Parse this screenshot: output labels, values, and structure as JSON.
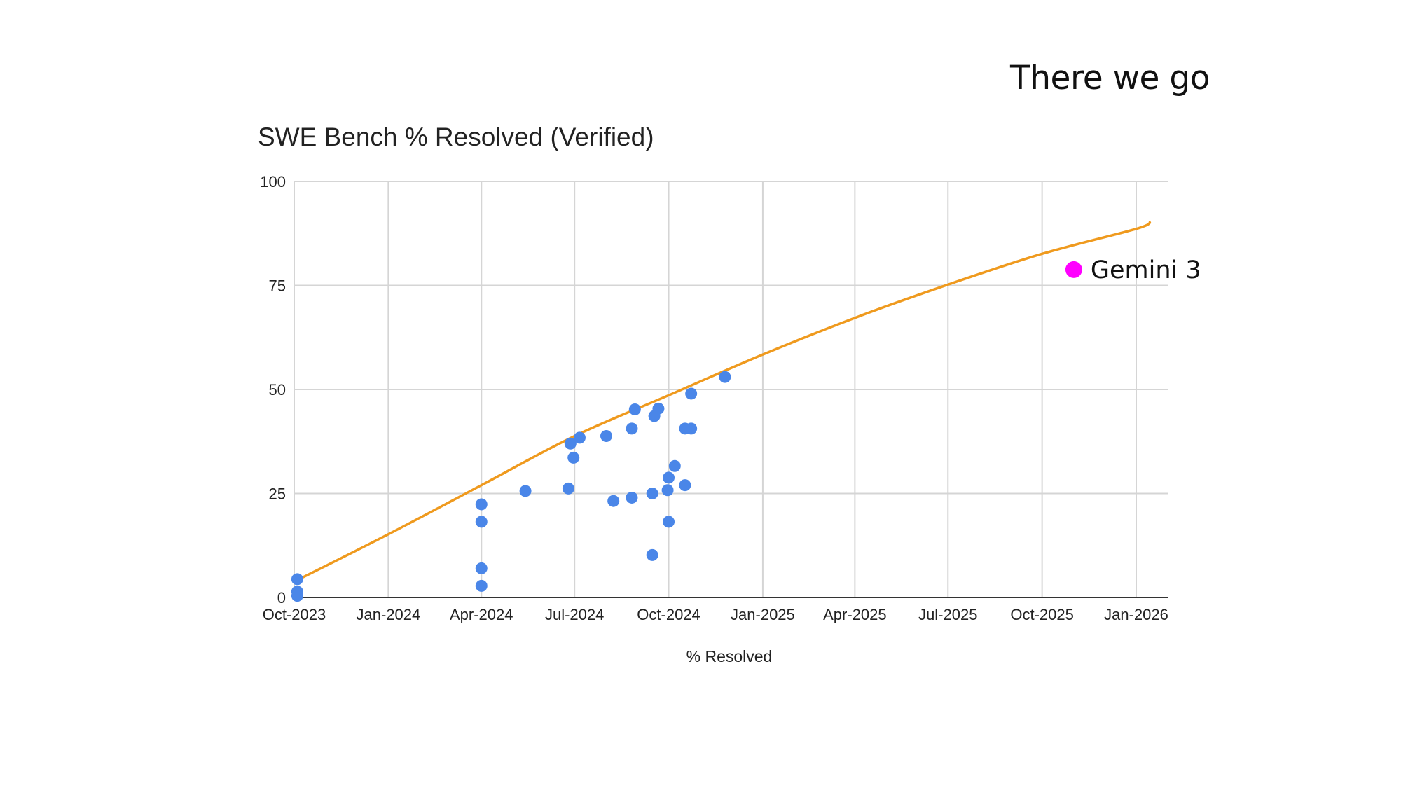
{
  "slide": {
    "caption": "There we go"
  },
  "chart_data": {
    "type": "scatter",
    "title": "SWE Bench % Resolved (Verified)",
    "xlabel": "% Resolved",
    "ylabel": "",
    "x_axis": {
      "type": "date",
      "range": [
        "2023-10-01",
        "2026-01-01"
      ],
      "ticks": [
        {
          "label": "Oct-2023",
          "date": "2023-10-01"
        },
        {
          "label": "Jan-2024",
          "date": "2024-01-01"
        },
        {
          "label": "Apr-2024",
          "date": "2024-04-01"
        },
        {
          "label": "Jul-2024",
          "date": "2024-07-01"
        },
        {
          "label": "Oct-2024",
          "date": "2024-10-01"
        },
        {
          "label": "Jan-2025",
          "date": "2025-01-01"
        },
        {
          "label": "Apr-2025",
          "date": "2025-04-01"
        },
        {
          "label": "Jul-2025",
          "date": "2025-07-01"
        },
        {
          "label": "Oct-2025",
          "date": "2025-10-01"
        },
        {
          "label": "Jan-2026",
          "date": "2026-01-01"
        }
      ]
    },
    "y_axis": {
      "range": [
        0,
        100
      ],
      "ticks": [
        0,
        25,
        50,
        75,
        100
      ]
    },
    "grid": true,
    "legend": "none",
    "colors": {
      "points": "#4a86e8",
      "trend": "#ef9a1e",
      "highlight": "#ff00ff",
      "grid": "#d5d5d5",
      "axis": "#333333"
    },
    "series": [
      {
        "points": [
          {
            "x": "2023-10-04",
            "y": 4.4
          },
          {
            "x": "2023-10-04",
            "y": 1.4
          },
          {
            "x": "2023-10-04",
            "y": 0.4
          },
          {
            "x": "2024-04-01",
            "y": 22.4
          },
          {
            "x": "2024-04-01",
            "y": 18.2
          },
          {
            "x": "2024-04-01",
            "y": 7.0
          },
          {
            "x": "2024-04-01",
            "y": 2.8
          },
          {
            "x": "2024-05-14",
            "y": 25.6
          },
          {
            "x": "2024-06-25",
            "y": 26.2
          },
          {
            "x": "2024-06-27",
            "y": 37.0
          },
          {
            "x": "2024-06-30",
            "y": 33.6
          },
          {
            "x": "2024-07-06",
            "y": 38.4
          },
          {
            "x": "2024-08-01",
            "y": 38.8
          },
          {
            "x": "2024-08-08",
            "y": 23.2
          },
          {
            "x": "2024-08-26",
            "y": 24.0
          },
          {
            "x": "2024-08-26",
            "y": 40.6
          },
          {
            "x": "2024-08-29",
            "y": 45.2
          },
          {
            "x": "2024-09-15",
            "y": 10.2
          },
          {
            "x": "2024-09-15",
            "y": 25.0
          },
          {
            "x": "2024-09-17",
            "y": 43.6
          },
          {
            "x": "2024-09-21",
            "y": 45.4
          },
          {
            "x": "2024-09-30",
            "y": 25.8
          },
          {
            "x": "2024-10-01",
            "y": 18.2
          },
          {
            "x": "2024-10-01",
            "y": 28.8
          },
          {
            "x": "2024-10-07",
            "y": 31.6
          },
          {
            "x": "2024-10-17",
            "y": 40.6
          },
          {
            "x": "2024-10-17",
            "y": 27.0
          },
          {
            "x": "2024-10-23",
            "y": 49.0
          },
          {
            "x": "2024-10-23",
            "y": 40.6
          },
          {
            "x": "2024-11-25",
            "y": 53.0
          }
        ]
      }
    ],
    "trendline": {
      "points": [
        {
          "x": "2023-10-01",
          "y": 3.8
        },
        {
          "x": "2024-01-01",
          "y": 15.2
        },
        {
          "x": "2024-04-01",
          "y": 27.0
        },
        {
          "x": "2024-07-01",
          "y": 38.8
        },
        {
          "x": "2024-10-01",
          "y": 48.6
        },
        {
          "x": "2025-01-01",
          "y": 58.4
        },
        {
          "x": "2025-04-01",
          "y": 67.2
        },
        {
          "x": "2025-07-01",
          "y": 75.2
        },
        {
          "x": "2025-10-01",
          "y": 82.6
        },
        {
          "x": "2026-01-01",
          "y": 88.6
        },
        {
          "x": "2026-01-15",
          "y": 90.4
        }
      ]
    },
    "annotations": [
      {
        "label": "Gemini 3",
        "x": "2025-11-01",
        "y": 78.8
      }
    ]
  }
}
